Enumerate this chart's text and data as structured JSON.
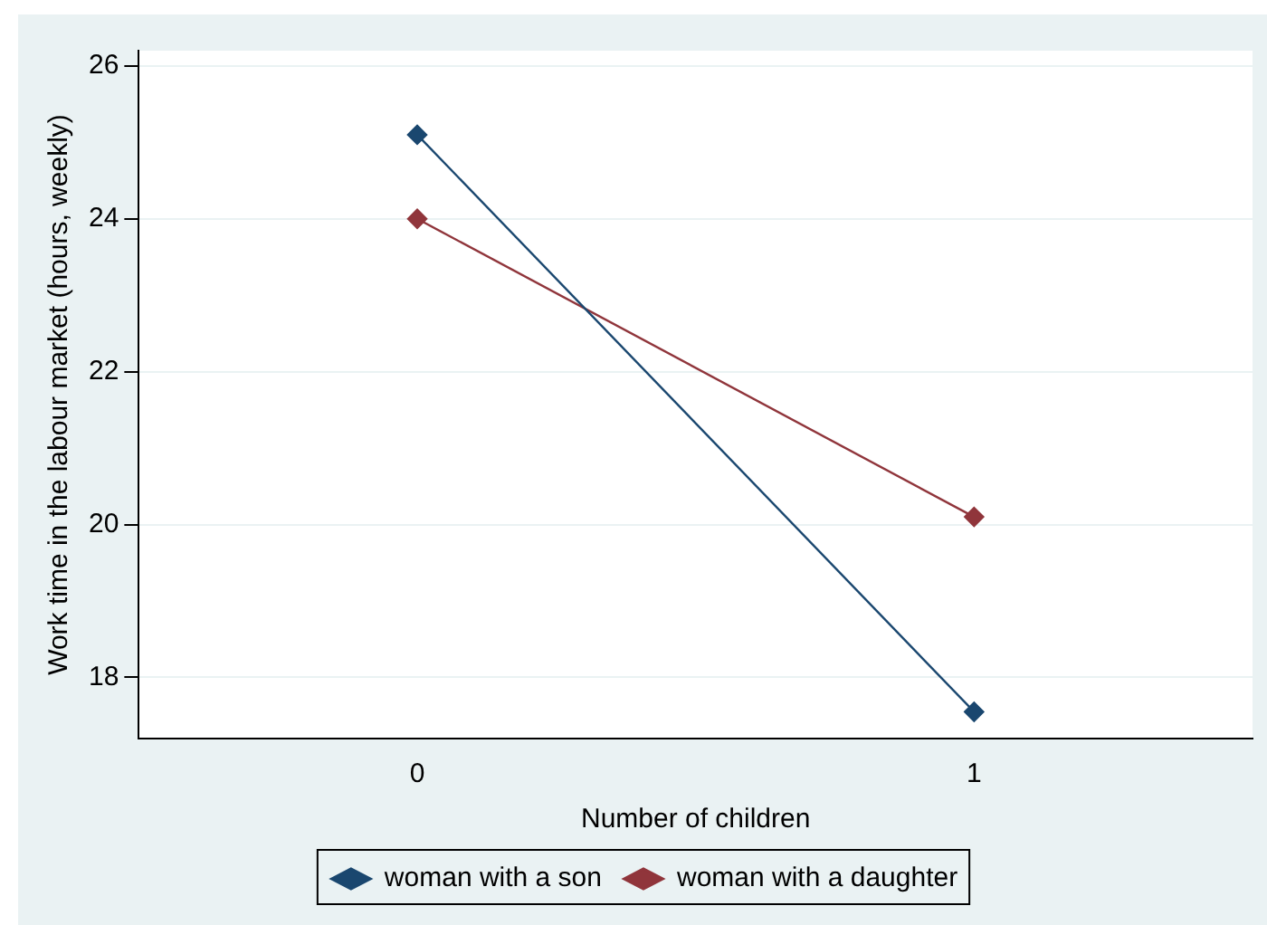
{
  "chart_data": {
    "type": "line",
    "xlabel": "Number of children",
    "ylabel": "Work time in the labour market (hours, weekly)",
    "x": [
      0,
      1
    ],
    "series": [
      {
        "name": "woman with a son",
        "color": "#1a476f",
        "values": [
          25.1,
          17.55
        ]
      },
      {
        "name": "woman with a daughter",
        "color": "#90353b",
        "values": [
          24.0,
          20.1
        ]
      }
    ],
    "xlim": [
      -0.5,
      1.5
    ],
    "xticks": [
      0,
      1
    ],
    "ylim": [
      17.2,
      26.2
    ],
    "yticks": [
      18,
      20,
      22,
      24,
      26
    ],
    "grid": "y",
    "legend": "bottom",
    "marker": "diamond",
    "line_style": "solid"
  }
}
